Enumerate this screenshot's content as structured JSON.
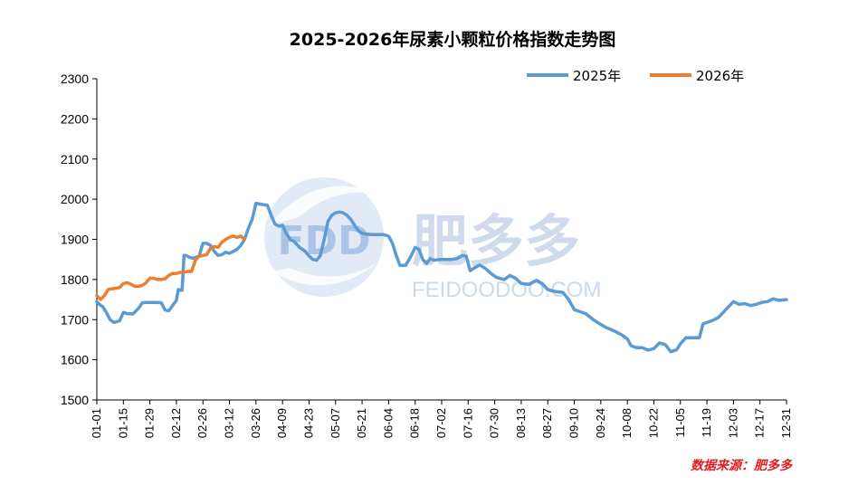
{
  "chart_data": {
    "type": "line",
    "title": "2025-2026年尿素小颗粒价格指数走势图",
    "ylim": [
      1500,
      2300
    ],
    "yticks": [
      1500,
      1600,
      1700,
      1800,
      1900,
      2000,
      2100,
      2200,
      2300
    ],
    "xticks": [
      "01-01",
      "01-15",
      "01-29",
      "02-12",
      "02-26",
      "03-12",
      "03-26",
      "04-09",
      "04-23",
      "05-07",
      "05-21",
      "06-04",
      "06-18",
      "07-02",
      "07-16",
      "07-30",
      "08-13",
      "08-27",
      "09-10",
      "09-24",
      "10-08",
      "10-22",
      "11-05",
      "11-19",
      "12-03",
      "12-17",
      "12-31"
    ],
    "legend_position": "top-right",
    "series": [
      {
        "name": "2025年",
        "color": "#5b9bd5",
        "points": [
          [
            "01-01",
            1745
          ],
          [
            "01-02",
            1740
          ],
          [
            "01-03",
            1735
          ],
          [
            "01-04",
            1733
          ],
          [
            "01-06",
            1718
          ],
          [
            "01-08",
            1700
          ],
          [
            "01-10",
            1693
          ],
          [
            "01-13",
            1697
          ],
          [
            "01-15",
            1718
          ],
          [
            "01-17",
            1715
          ],
          [
            "01-20",
            1714
          ],
          [
            "01-23",
            1728
          ],
          [
            "01-25",
            1742
          ],
          [
            "01-27",
            1743
          ],
          [
            "01-29",
            1743
          ],
          [
            "02-01",
            1743
          ],
          [
            "02-04",
            1742
          ],
          [
            "02-06",
            1724
          ],
          [
            "02-08",
            1722
          ],
          [
            "02-10",
            1735
          ],
          [
            "02-12",
            1748
          ],
          [
            "02-13",
            1775
          ],
          [
            "02-15",
            1773
          ],
          [
            "02-16",
            1860
          ],
          [
            "02-17",
            1860
          ],
          [
            "02-19",
            1855
          ],
          [
            "02-21",
            1853
          ],
          [
            "02-24",
            1858
          ],
          [
            "02-26",
            1890
          ],
          [
            "02-28",
            1890
          ],
          [
            "03-02",
            1885
          ],
          [
            "03-04",
            1870
          ],
          [
            "03-06",
            1860
          ],
          [
            "03-08",
            1862
          ],
          [
            "03-10",
            1868
          ],
          [
            "03-12",
            1865
          ],
          [
            "03-14",
            1870
          ],
          [
            "03-16",
            1875
          ],
          [
            "03-18",
            1885
          ],
          [
            "03-20",
            1900
          ],
          [
            "03-22",
            1928
          ],
          [
            "03-24",
            1950
          ],
          [
            "03-26",
            1990
          ],
          [
            "03-28",
            1988
          ],
          [
            "03-30",
            1986
          ],
          [
            "04-01",
            1985
          ],
          [
            "04-03",
            1960
          ],
          [
            "04-05",
            1938
          ],
          [
            "04-07",
            1933
          ],
          [
            "04-09",
            1935
          ],
          [
            "04-11",
            1915
          ],
          [
            "04-13",
            1900
          ],
          [
            "04-15",
            1895
          ],
          [
            "04-18",
            1880
          ],
          [
            "04-21",
            1870
          ],
          [
            "04-23",
            1858
          ],
          [
            "04-25",
            1850
          ],
          [
            "04-27",
            1848
          ],
          [
            "04-29",
            1860
          ],
          [
            "05-01",
            1900
          ],
          [
            "05-03",
            1945
          ],
          [
            "05-05",
            1960
          ],
          [
            "05-07",
            1966
          ],
          [
            "05-09",
            1968
          ],
          [
            "05-11",
            1966
          ],
          [
            "05-13",
            1960
          ],
          [
            "05-15",
            1950
          ],
          [
            "05-17",
            1935
          ],
          [
            "05-19",
            1922
          ],
          [
            "05-21",
            1915
          ],
          [
            "05-23",
            1913
          ],
          [
            "05-26",
            1912
          ],
          [
            "05-29",
            1912
          ],
          [
            "06-01",
            1912
          ],
          [
            "06-04",
            1908
          ],
          [
            "06-06",
            1890
          ],
          [
            "06-08",
            1860
          ],
          [
            "06-10",
            1835
          ],
          [
            "06-13",
            1835
          ],
          [
            "06-16",
            1860
          ],
          [
            "06-18",
            1880
          ],
          [
            "06-20",
            1875
          ],
          [
            "06-22",
            1850
          ],
          [
            "06-24",
            1840
          ],
          [
            "06-26",
            1852
          ],
          [
            "06-28",
            1848
          ],
          [
            "07-01",
            1850
          ],
          [
            "07-04",
            1850
          ],
          [
            "07-07",
            1850
          ],
          [
            "07-10",
            1852
          ],
          [
            "07-13",
            1860
          ],
          [
            "07-15",
            1858
          ],
          [
            "07-17",
            1822
          ],
          [
            "07-19",
            1828
          ],
          [
            "07-22",
            1836
          ],
          [
            "07-25",
            1828
          ],
          [
            "07-28",
            1815
          ],
          [
            "07-31",
            1805
          ],
          [
            "08-04",
            1800
          ],
          [
            "08-07",
            1810
          ],
          [
            "08-10",
            1803
          ],
          [
            "08-13",
            1790
          ],
          [
            "08-17",
            1788
          ],
          [
            "08-21",
            1798
          ],
          [
            "08-24",
            1790
          ],
          [
            "08-27",
            1775
          ],
          [
            "08-31",
            1770
          ],
          [
            "09-04",
            1768
          ],
          [
            "09-07",
            1750
          ],
          [
            "09-10",
            1725
          ],
          [
            "09-13",
            1720
          ],
          [
            "09-16",
            1715
          ],
          [
            "09-20",
            1700
          ],
          [
            "09-24",
            1688
          ],
          [
            "09-27",
            1680
          ],
          [
            "10-01",
            1672
          ],
          [
            "10-05",
            1662
          ],
          [
            "10-08",
            1652
          ],
          [
            "10-10",
            1635
          ],
          [
            "10-13",
            1630
          ],
          [
            "10-16",
            1630
          ],
          [
            "10-19",
            1624
          ],
          [
            "10-22",
            1628
          ],
          [
            "10-25",
            1642
          ],
          [
            "10-28",
            1638
          ],
          [
            "10-31",
            1620
          ],
          [
            "11-03",
            1625
          ],
          [
            "11-05",
            1640
          ],
          [
            "11-08",
            1655
          ],
          [
            "11-12",
            1655
          ],
          [
            "11-15",
            1655
          ],
          [
            "11-17",
            1690
          ],
          [
            "11-19",
            1693
          ],
          [
            "11-22",
            1698
          ],
          [
            "11-25",
            1705
          ],
          [
            "11-28",
            1720
          ],
          [
            "12-01",
            1735
          ],
          [
            "12-03",
            1745
          ],
          [
            "12-06",
            1738
          ],
          [
            "12-09",
            1740
          ],
          [
            "12-12",
            1735
          ],
          [
            "12-15",
            1738
          ],
          [
            "12-18",
            1743
          ],
          [
            "12-21",
            1745
          ],
          [
            "12-24",
            1752
          ],
          [
            "12-27",
            1748
          ],
          [
            "12-31",
            1750
          ]
        ]
      },
      {
        "name": "2026年",
        "color": "#ed7d31",
        "points": [
          [
            "01-01",
            1760
          ],
          [
            "01-03",
            1750
          ],
          [
            "01-05",
            1760
          ],
          [
            "01-07",
            1775
          ],
          [
            "01-09",
            1777
          ],
          [
            "01-11",
            1778
          ],
          [
            "01-13",
            1780
          ],
          [
            "01-15",
            1790
          ],
          [
            "01-17",
            1792
          ],
          [
            "01-19",
            1788
          ],
          [
            "01-21",
            1783
          ],
          [
            "01-23",
            1783
          ],
          [
            "01-25",
            1785
          ],
          [
            "01-27",
            1792
          ],
          [
            "01-29",
            1803
          ],
          [
            "01-31",
            1803
          ],
          [
            "02-02",
            1800
          ],
          [
            "02-04",
            1800
          ],
          [
            "02-06",
            1802
          ],
          [
            "02-08",
            1810
          ],
          [
            "02-10",
            1815
          ],
          [
            "02-12",
            1815
          ],
          [
            "02-14",
            1818
          ],
          [
            "02-16",
            1818
          ],
          [
            "02-18",
            1820
          ],
          [
            "02-20",
            1820
          ],
          [
            "02-22",
            1848
          ],
          [
            "02-24",
            1858
          ],
          [
            "02-26",
            1860
          ],
          [
            "02-28",
            1862
          ],
          [
            "03-02",
            1878
          ],
          [
            "03-04",
            1882
          ],
          [
            "03-06",
            1880
          ],
          [
            "03-08",
            1893
          ],
          [
            "03-10",
            1900
          ],
          [
            "03-12",
            1905
          ],
          [
            "03-14",
            1908
          ],
          [
            "03-16",
            1905
          ],
          [
            "03-18",
            1908
          ],
          [
            "03-20",
            1900
          ]
        ]
      }
    ]
  },
  "watermark": {
    "logo": "FDD",
    "name": "肥多多",
    "url": "FEIDOODOO.COM"
  },
  "source_note": "数据来源：肥多多"
}
